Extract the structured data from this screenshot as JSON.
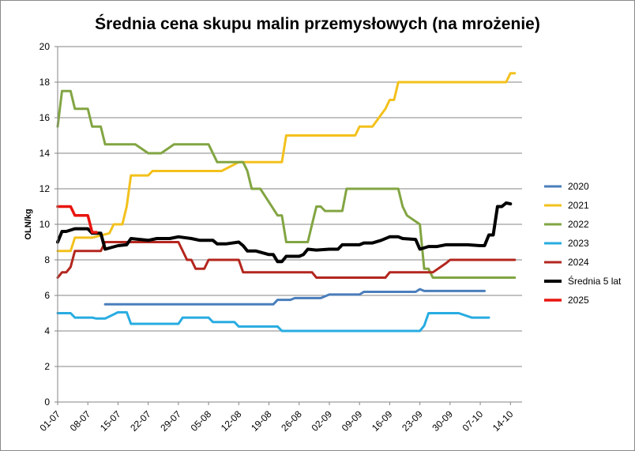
{
  "chart_data": {
    "type": "line",
    "title": "Średnia cena skupu malin przemysłowych (na mrożenie)",
    "xlabel": "",
    "ylabel": "OLN/kg",
    "ylim": [
      0,
      20
    ],
    "yticks": [
      0,
      2,
      4,
      6,
      8,
      10,
      12,
      14,
      16,
      18,
      20
    ],
    "x_tick_labels": [
      "01-07",
      "08-07",
      "15-07",
      "22-07",
      "29-07",
      "05-08",
      "12-08",
      "19-08",
      "26-08",
      "02-09",
      "09-09",
      "16-09",
      "23-09",
      "30-09",
      "07-10",
      "14-10"
    ],
    "day_range": [
      0,
      105
    ],
    "grid": true,
    "legend_position": "right",
    "series": [
      {
        "name": "2020",
        "color": "#4a7ebb",
        "width": 3,
        "points": [
          [
            11,
            5.5
          ],
          [
            50,
            5.5
          ],
          [
            51,
            5.75
          ],
          [
            54,
            5.75
          ],
          [
            55,
            5.85
          ],
          [
            61,
            5.85
          ],
          [
            63,
            6.05
          ],
          [
            70,
            6.05
          ],
          [
            71,
            6.2
          ],
          [
            83,
            6.2
          ],
          [
            84,
            6.35
          ],
          [
            85,
            6.25
          ],
          [
            99,
            6.25
          ]
        ]
      },
      {
        "name": "2021",
        "color": "#f3c11c",
        "width": 3,
        "points": [
          [
            0,
            8.5
          ],
          [
            3,
            8.5
          ],
          [
            4,
            9.25
          ],
          [
            8,
            9.25
          ],
          [
            12,
            9.5
          ],
          [
            13,
            10
          ],
          [
            15,
            10
          ],
          [
            16,
            11
          ],
          [
            17,
            12.75
          ],
          [
            21,
            12.75
          ],
          [
            22,
            13
          ],
          [
            38,
            13
          ],
          [
            42,
            13.5
          ],
          [
            52,
            13.5
          ],
          [
            53,
            15
          ],
          [
            69,
            15
          ],
          [
            70,
            15.5
          ],
          [
            73,
            15.5
          ],
          [
            76,
            16.5
          ],
          [
            77,
            17
          ],
          [
            78,
            17
          ],
          [
            79,
            18
          ],
          [
            104,
            18
          ],
          [
            105,
            18.5
          ],
          [
            106,
            18.5
          ]
        ]
      },
      {
        "name": "2022",
        "color": "#82a542",
        "width": 3,
        "points": [
          [
            0,
            15.5
          ],
          [
            1,
            17.5
          ],
          [
            3,
            17.5
          ],
          [
            4,
            16.5
          ],
          [
            7,
            16.5
          ],
          [
            8,
            15.5
          ],
          [
            10,
            15.5
          ],
          [
            11,
            14.5
          ],
          [
            18,
            14.5
          ],
          [
            21,
            14
          ],
          [
            24,
            14
          ],
          [
            27,
            14.5
          ],
          [
            35,
            14.5
          ],
          [
            37,
            13.5
          ],
          [
            43,
            13.5
          ],
          [
            44,
            13
          ],
          [
            45,
            12
          ],
          [
            47,
            12
          ],
          [
            51,
            10.5
          ],
          [
            52,
            10.5
          ],
          [
            53,
            9
          ],
          [
            58,
            9
          ],
          [
            59,
            10
          ],
          [
            60,
            11
          ],
          [
            61,
            11
          ],
          [
            62,
            10.75
          ],
          [
            66,
            10.75
          ],
          [
            67,
            12
          ],
          [
            79,
            12
          ],
          [
            80,
            11
          ],
          [
            81,
            10.5
          ],
          [
            84,
            10
          ],
          [
            85,
            7.5
          ],
          [
            86,
            7.5
          ],
          [
            87,
            7
          ],
          [
            106,
            7
          ]
        ]
      },
      {
        "name": "2023",
        "color": "#28ace1",
        "width": 3,
        "points": [
          [
            0,
            5
          ],
          [
            3,
            5
          ],
          [
            4,
            4.75
          ],
          [
            8,
            4.75
          ],
          [
            9,
            4.7
          ],
          [
            11,
            4.7
          ],
          [
            14,
            5.05
          ],
          [
            16,
            5.05
          ],
          [
            17,
            4.4
          ],
          [
            28,
            4.4
          ],
          [
            29,
            4.75
          ],
          [
            35,
            4.75
          ],
          [
            36,
            4.5
          ],
          [
            41,
            4.5
          ],
          [
            42,
            4.25
          ],
          [
            51,
            4.25
          ],
          [
            52,
            4
          ],
          [
            84,
            4
          ],
          [
            85,
            4.3
          ],
          [
            86,
            5
          ],
          [
            93,
            5
          ],
          [
            96,
            4.75
          ],
          [
            100,
            4.75
          ]
        ]
      },
      {
        "name": "2024",
        "color": "#b3261e",
        "width": 3,
        "points": [
          [
            0,
            7
          ],
          [
            1,
            7.3
          ],
          [
            2,
            7.3
          ],
          [
            3,
            7.6
          ],
          [
            4,
            8.5
          ],
          [
            10,
            8.5
          ],
          [
            11,
            9
          ],
          [
            28,
            9
          ],
          [
            30,
            8
          ],
          [
            31,
            8
          ],
          [
            32,
            7.5
          ],
          [
            34,
            7.5
          ],
          [
            35,
            8
          ],
          [
            42,
            8
          ],
          [
            43,
            7.3
          ],
          [
            59,
            7.3
          ],
          [
            60,
            7
          ],
          [
            76,
            7
          ],
          [
            77,
            7.3
          ],
          [
            87,
            7.3
          ],
          [
            90,
            7.8
          ],
          [
            91,
            8
          ],
          [
            106,
            8
          ]
        ]
      },
      {
        "name": "Średnia 5 lat",
        "color": "#000000",
        "width": 4,
        "points": [
          [
            0,
            9
          ],
          [
            1,
            9.6
          ],
          [
            2,
            9.6
          ],
          [
            4,
            9.75
          ],
          [
            7,
            9.75
          ],
          [
            8,
            9.5
          ],
          [
            10,
            9.5
          ],
          [
            11,
            8.6
          ],
          [
            14,
            8.8
          ],
          [
            16,
            8.85
          ],
          [
            17,
            9.2
          ],
          [
            21,
            9.1
          ],
          [
            23,
            9.2
          ],
          [
            26,
            9.2
          ],
          [
            28,
            9.3
          ],
          [
            31,
            9.2
          ],
          [
            33,
            9.1
          ],
          [
            36,
            9.1
          ],
          [
            37,
            8.9
          ],
          [
            39,
            8.9
          ],
          [
            42,
            9.0
          ],
          [
            43,
            8.8
          ],
          [
            44,
            8.5
          ],
          [
            46,
            8.5
          ],
          [
            49,
            8.3
          ],
          [
            50,
            8.3
          ],
          [
            51,
            7.9
          ],
          [
            52,
            7.9
          ],
          [
            53,
            8.2
          ],
          [
            56,
            8.2
          ],
          [
            57,
            8.3
          ],
          [
            58,
            8.6
          ],
          [
            60,
            8.55
          ],
          [
            63,
            8.6
          ],
          [
            65,
            8.6
          ],
          [
            66,
            8.85
          ],
          [
            70,
            8.85
          ],
          [
            71,
            8.95
          ],
          [
            73,
            8.95
          ],
          [
            75,
            9.1
          ],
          [
            77,
            9.3
          ],
          [
            79,
            9.3
          ],
          [
            80,
            9.2
          ],
          [
            83,
            9.15
          ],
          [
            84,
            8.6
          ],
          [
            86,
            8.75
          ],
          [
            88,
            8.75
          ],
          [
            90,
            8.85
          ],
          [
            95,
            8.85
          ],
          [
            98,
            8.8
          ],
          [
            99,
            8.8
          ],
          [
            100,
            9.4
          ],
          [
            101,
            9.4
          ],
          [
            102,
            11.0
          ],
          [
            103,
            11.0
          ],
          [
            104,
            11.2
          ],
          [
            105,
            11.15
          ]
        ]
      },
      {
        "name": "2025",
        "color": "#e8150f",
        "width": 3.5,
        "points": [
          [
            0,
            11
          ],
          [
            3,
            11
          ],
          [
            4,
            10.5
          ],
          [
            7,
            10.5
          ],
          [
            8,
            9.55
          ],
          [
            9,
            9.55
          ]
        ]
      }
    ]
  }
}
